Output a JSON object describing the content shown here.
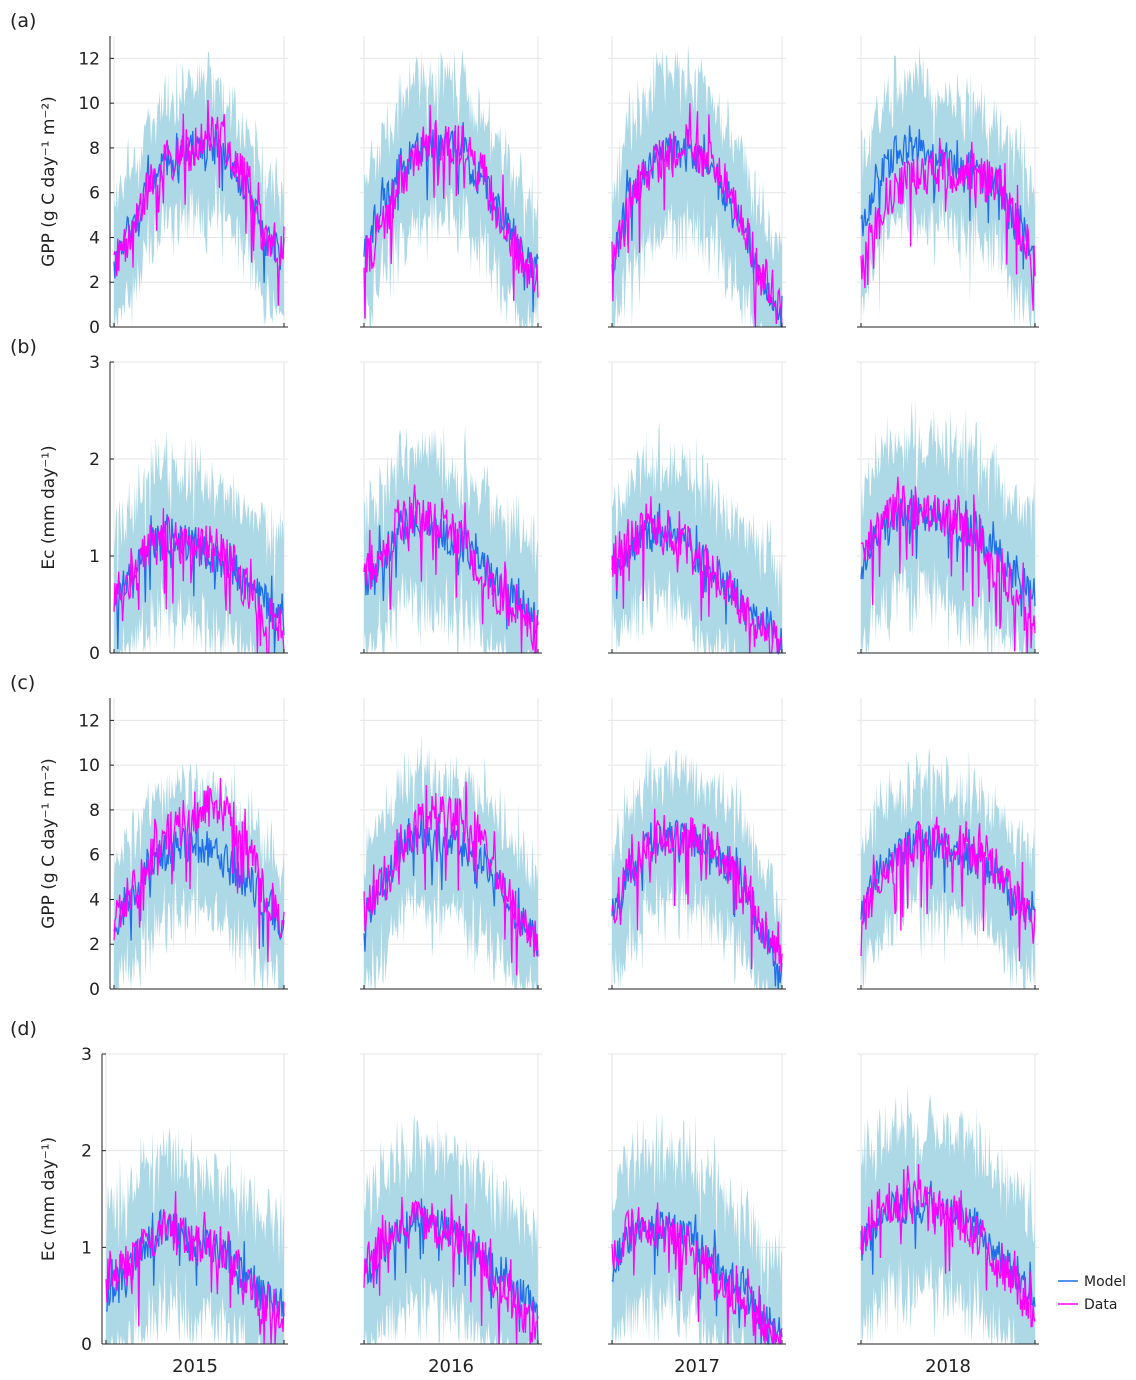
{
  "colors": {
    "model": "#1f6feb",
    "data": "#ff00ff",
    "band": "#add8e6",
    "grid": "#e6e6e6",
    "axis": "#222222"
  },
  "legend": {
    "model": "Model",
    "data": "Data"
  },
  "years": [
    "2015",
    "2016",
    "2017",
    "2018"
  ],
  "chart_data": [
    {
      "type": "line",
      "panel": "(a)",
      "ylabel": "GPP (g C day⁻¹ m⁻²)",
      "ylim": [
        0,
        13
      ],
      "yticks": [
        0,
        2,
        4,
        6,
        8,
        10,
        12
      ],
      "series": [
        {
          "name": "Model"
        },
        {
          "name": "Data"
        }
      ],
      "years": {
        "2015": {
          "model": [
            3.0,
            5.0,
            6.8,
            7.8,
            8.2,
            8.4,
            7.8,
            6.5,
            4.2,
            3.6
          ],
          "data": [
            3.4,
            4.8,
            6.9,
            7.9,
            8.4,
            8.9,
            8.6,
            7.0,
            4.6,
            4.0
          ],
          "band_width": 2.6,
          "end": 0.8
        },
        "2016": {
          "model": [
            3.8,
            6.0,
            7.6,
            8.3,
            8.5,
            8.2,
            7.0,
            5.5,
            3.8,
            3.0
          ],
          "data": [
            3.2,
            5.0,
            7.2,
            8.4,
            8.8,
            8.6,
            7.4,
            5.6,
            3.6,
            2.6
          ],
          "band_width": 2.8,
          "end": 0.8
        },
        "2017": {
          "model": [
            3.4,
            6.2,
            7.6,
            8.1,
            8.0,
            7.6,
            6.4,
            4.6,
            2.2,
            1.0
          ],
          "data": [
            3.6,
            6.0,
            7.4,
            8.4,
            8.6,
            8.1,
            6.8,
            4.8,
            2.6,
            1.6
          ],
          "band_width": 3.0,
          "end": 0.8
        },
        "2018": {
          "model": [
            5.0,
            7.2,
            8.2,
            8.4,
            8.0,
            7.6,
            7.2,
            6.6,
            5.0,
            3.8
          ],
          "data": [
            3.4,
            5.2,
            6.8,
            7.2,
            7.4,
            7.4,
            7.2,
            6.8,
            5.2,
            3.4
          ],
          "band_width": 2.8,
          "end": 0.8
        }
      }
    },
    {
      "type": "line",
      "panel": "(b)",
      "ylabel": "Ec (mm day⁻¹)",
      "ylim": [
        0,
        3
      ],
      "yticks": [
        0,
        1,
        2,
        3
      ],
      "series": [
        {
          "name": "Model"
        },
        {
          "name": "Data"
        }
      ],
      "years": {
        "2015": {
          "model": [
            0.6,
            0.9,
            1.2,
            1.3,
            1.2,
            1.1,
            1.0,
            0.8,
            0.6,
            0.4
          ],
          "data": [
            0.7,
            0.9,
            1.2,
            1.3,
            1.2,
            1.2,
            1.1,
            0.8,
            0.5,
            0.35
          ],
          "band_width": 0.7,
          "end": 0.06
        },
        "2016": {
          "model": [
            0.8,
            1.1,
            1.4,
            1.4,
            1.3,
            1.2,
            1.0,
            0.8,
            0.6,
            0.4
          ],
          "data": [
            0.9,
            1.2,
            1.5,
            1.5,
            1.4,
            1.3,
            1.0,
            0.7,
            0.5,
            0.3
          ],
          "band_width": 0.7,
          "end": 0.06
        },
        "2017": {
          "model": [
            0.9,
            1.2,
            1.3,
            1.3,
            1.2,
            1.0,
            0.8,
            0.6,
            0.4,
            0.2
          ],
          "data": [
            1.1,
            1.3,
            1.4,
            1.3,
            1.2,
            1.0,
            0.8,
            0.5,
            0.3,
            0.15
          ],
          "band_width": 0.7,
          "end": 0.06
        },
        "2018": {
          "model": [
            1.0,
            1.3,
            1.5,
            1.5,
            1.5,
            1.4,
            1.3,
            1.1,
            0.9,
            0.6
          ],
          "data": [
            1.1,
            1.4,
            1.6,
            1.6,
            1.5,
            1.5,
            1.3,
            1.0,
            0.8,
            0.5
          ],
          "band_width": 0.75,
          "end": 0.06
        }
      }
    },
    {
      "type": "line",
      "panel": "(c)",
      "ylabel": "GPP (g C day⁻¹ m⁻²)",
      "ylim": [
        0,
        13
      ],
      "yticks": [
        0,
        2,
        4,
        6,
        8,
        10,
        12
      ],
      "series": [
        {
          "name": "Model"
        },
        {
          "name": "Data"
        }
      ],
      "years": {
        "2015": {
          "model": [
            3.2,
            4.8,
            6.0,
            6.6,
            6.8,
            6.6,
            6.0,
            5.2,
            4.2,
            3.0
          ],
          "data": [
            3.6,
            4.8,
            6.2,
            7.4,
            8.2,
            8.6,
            8.2,
            6.8,
            4.8,
            3.4
          ],
          "band_width": 2.6,
          "end": 0.8
        },
        "2016": {
          "model": [
            3.6,
            5.0,
            6.8,
            7.2,
            7.0,
            6.6,
            6.0,
            5.0,
            3.6,
            2.4
          ],
          "data": [
            3.8,
            5.2,
            7.0,
            7.8,
            8.4,
            8.0,
            7.2,
            5.6,
            3.8,
            2.4
          ],
          "band_width": 2.8,
          "end": 0.8
        },
        "2017": {
          "model": [
            3.6,
            5.6,
            6.6,
            7.2,
            7.0,
            6.6,
            6.0,
            4.8,
            2.6,
            1.0
          ],
          "data": [
            4.0,
            5.8,
            6.8,
            7.4,
            7.4,
            7.0,
            6.2,
            5.0,
            3.0,
            2.0
          ],
          "band_width": 2.8,
          "end": 0.8
        },
        "2018": {
          "model": [
            4.0,
            5.6,
            6.4,
            7.0,
            6.8,
            6.4,
            6.0,
            5.4,
            4.4,
            3.4
          ],
          "data": [
            3.8,
            5.2,
            6.2,
            7.0,
            7.2,
            6.8,
            6.4,
            5.8,
            4.6,
            3.4
          ],
          "band_width": 2.6,
          "end": 0.8
        }
      }
    },
    {
      "type": "line",
      "panel": "(d)",
      "ylabel": "Ec (mm day⁻¹)",
      "ylim": [
        0,
        3
      ],
      "yticks": [
        0,
        1,
        2,
        3
      ],
      "series": [
        {
          "name": "Model"
        },
        {
          "name": "Data"
        }
      ],
      "years": {
        "2015": {
          "model": [
            0.6,
            0.8,
            1.1,
            1.3,
            1.2,
            1.1,
            1.0,
            0.8,
            0.6,
            0.5
          ],
          "data": [
            0.7,
            0.9,
            1.1,
            1.3,
            1.2,
            1.1,
            1.1,
            0.8,
            0.5,
            0.4
          ],
          "band_width": 0.75,
          "end": 0.06
        },
        "2016": {
          "model": [
            0.8,
            1.1,
            1.3,
            1.4,
            1.3,
            1.2,
            1.0,
            0.8,
            0.6,
            0.4
          ],
          "data": [
            0.9,
            1.2,
            1.4,
            1.4,
            1.3,
            1.2,
            1.0,
            0.7,
            0.5,
            0.3
          ],
          "band_width": 0.75,
          "end": 0.06
        },
        "2017": {
          "model": [
            0.9,
            1.2,
            1.3,
            1.3,
            1.2,
            1.0,
            0.8,
            0.6,
            0.3,
            0.2
          ],
          "data": [
            1.0,
            1.3,
            1.3,
            1.2,
            1.1,
            0.9,
            0.7,
            0.5,
            0.3,
            0.15
          ],
          "band_width": 0.75,
          "end": 0.06
        },
        "2018": {
          "model": [
            1.1,
            1.4,
            1.5,
            1.5,
            1.5,
            1.4,
            1.3,
            1.1,
            0.8,
            0.6
          ],
          "data": [
            1.2,
            1.5,
            1.6,
            1.6,
            1.5,
            1.4,
            1.2,
            1.0,
            0.7,
            0.4
          ],
          "band_width": 0.8,
          "end": 0.06
        }
      }
    }
  ]
}
